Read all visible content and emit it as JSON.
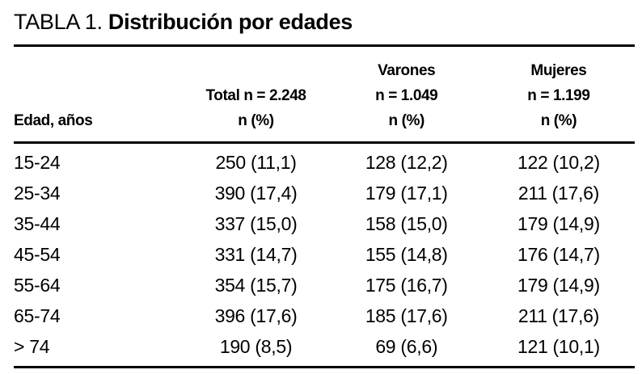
{
  "title": {
    "label": "TABLA 1.",
    "subtitle": "Distribución por edades"
  },
  "table": {
    "header": {
      "edad": "Edad, años",
      "total": {
        "line1": "",
        "line2": "Total n = 2.248",
        "line3": "n (%)"
      },
      "varones": {
        "line1": "Varones",
        "line2": "n = 1.049",
        "line3": "n (%)"
      },
      "mujeres": {
        "line1": "Mujeres",
        "line2": "n = 1.199",
        "line3": "n (%)"
      }
    },
    "rows": [
      {
        "edad": "15-24",
        "total": "250 (11,1)",
        "varones": "128 (12,2)",
        "mujeres": "122 (10,2)"
      },
      {
        "edad": "25-34",
        "total": "390 (17,4)",
        "varones": "179 (17,1)",
        "mujeres": "211 (17,6)"
      },
      {
        "edad": "35-44",
        "total": "337 (15,0)",
        "varones": "158 (15,0)",
        "mujeres": "179 (14,9)"
      },
      {
        "edad": "45-54",
        "total": "331 (14,7)",
        "varones": "155 (14,8)",
        "mujeres": "176 (14,7)"
      },
      {
        "edad": "55-64",
        "total": "354 (15,7)",
        "varones": "175 (16,7)",
        "mujeres": "179 (14,9)"
      },
      {
        "edad": "65-74",
        "total": "396 (17,6)",
        "varones": "185 (17,6)",
        "mujeres": "211 (17,6)"
      },
      {
        "edad": "> 74",
        "total": "190 (8,5)",
        "varones": "69 (6,6)",
        "mujeres": "121 (10,1)"
      }
    ]
  },
  "colors": {
    "text": "#000000",
    "background": "#ffffff",
    "rule": "#000000"
  }
}
